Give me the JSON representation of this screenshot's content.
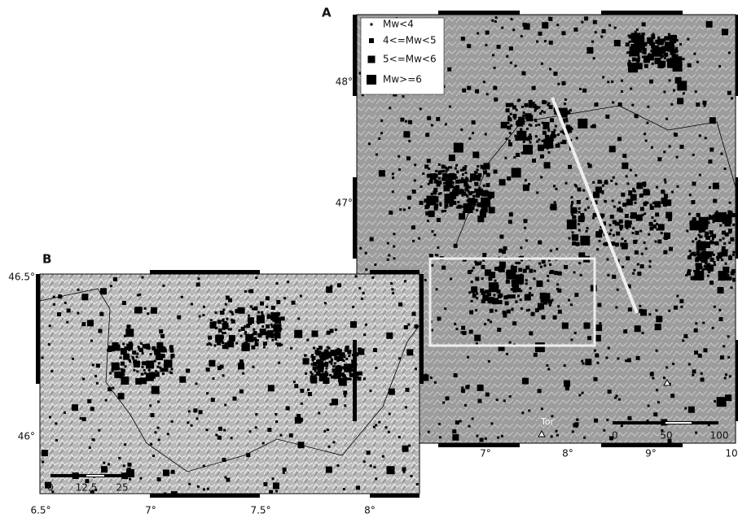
{
  "panels": [
    {
      "label": "A",
      "y_labels": [
        "48°",
        "47°"
      ],
      "x_labels": [
        "7°",
        "8°",
        "9°",
        "10"
      ],
      "legend": [
        "Mw<4",
        "4<=Mw<5",
        "5<=Mw<6",
        "Mw>=6"
      ],
      "scale_labels": [
        "0",
        "50",
        "100"
      ],
      "place_label": "Tor"
    },
    {
      "label": "B",
      "y_labels": [
        "46.5°",
        "46°"
      ],
      "x_labels": [
        "6.5°",
        "7°",
        "7.5°",
        "8°"
      ],
      "scale_labels": [
        "0",
        "12.5",
        "25"
      ]
    }
  ]
}
